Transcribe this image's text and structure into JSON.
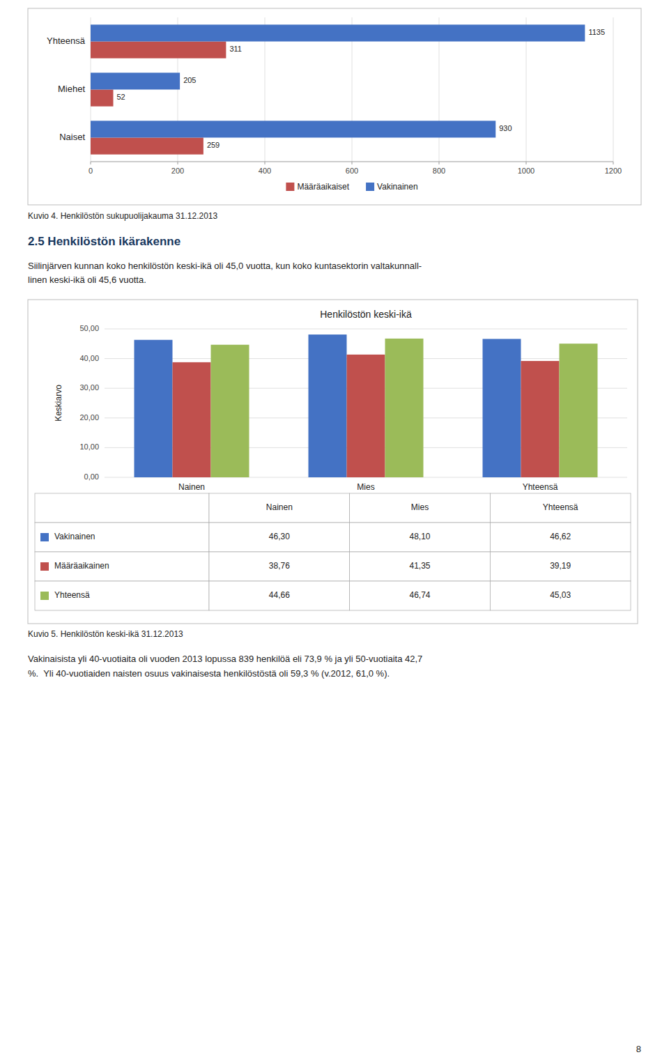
{
  "chart_data": [
    {
      "type": "bar",
      "orientation": "horizontal",
      "categories": [
        "Naiset",
        "Miehet",
        "Yhteensä"
      ],
      "series": [
        {
          "name": "Määräaikaiset",
          "color": "#c0504d",
          "values": [
            259,
            52,
            311
          ]
        },
        {
          "name": "Vakinainen",
          "color": "#4472c4",
          "values": [
            930,
            205,
            1135
          ]
        }
      ],
      "xlim": [
        0,
        1200
      ],
      "xticks": [
        0,
        200,
        400,
        600,
        800,
        1000,
        1200
      ],
      "grid": true,
      "legend": "bottom",
      "data_labels": true,
      "caption": "Kuvio 4. Henkilöstön sukupuolijakauma 31.12.2013"
    },
    {
      "type": "bar",
      "title": "Henkilöstön keski-ikä",
      "ylabel": "Keskiarvo",
      "categories": [
        "Nainen",
        "Mies",
        "Yhteensä"
      ],
      "series": [
        {
          "name": "Vakinainen",
          "color": "#4472c4",
          "values": [
            46.3,
            48.1,
            46.62
          ],
          "value_labels": [
            "46,30",
            "48,10",
            "46,62"
          ]
        },
        {
          "name": "Määräaikainen",
          "color": "#c0504d",
          "values": [
            38.76,
            41.35,
            39.19
          ],
          "value_labels": [
            "38,76",
            "41,35",
            "39,19"
          ]
        },
        {
          "name": "Yhteensä",
          "color": "#9bbb59",
          "values": [
            44.66,
            46.74,
            45.03
          ],
          "value_labels": [
            "44,66",
            "46,74",
            "45,03"
          ]
        }
      ],
      "ylim": [
        0,
        50
      ],
      "yticks": [
        {
          "value": 0,
          "label": "0,00"
        },
        {
          "value": 10,
          "label": "10,00"
        },
        {
          "value": 20,
          "label": "20,00"
        },
        {
          "value": 30,
          "label": "30,00"
        },
        {
          "value": 40,
          "label": "40,00"
        },
        {
          "value": 50,
          "label": "50,00"
        }
      ],
      "grid": true,
      "caption": "Kuvio 5. Henkilöstön keski-ikä 31.12.2013"
    }
  ],
  "section_title": "2.5 Henkilöstön ikärakenne",
  "section_title_color": "#17375e",
  "paragraphs": [
    "Siilinjärven kunnan koko henkilöstön keski-ikä oli 45,0 vuotta, kun koko kuntasektorin valtakunnall-",
    "linen keski-ikä oli 45,6 vuotta."
  ],
  "footer": [
    "Vakinaisista yli 40-vuotiaita oli vuoden 2013 lopussa 839 henkilöä eli 73,9 % ja yli 50-vuotiaita 42,7",
    "%.  Yli 40-vuotiaiden naisten osuus vakinaisesta henkilöstöstä oli 59,3 % (v.2012, 61,0 %)."
  ],
  "page_number": "8"
}
